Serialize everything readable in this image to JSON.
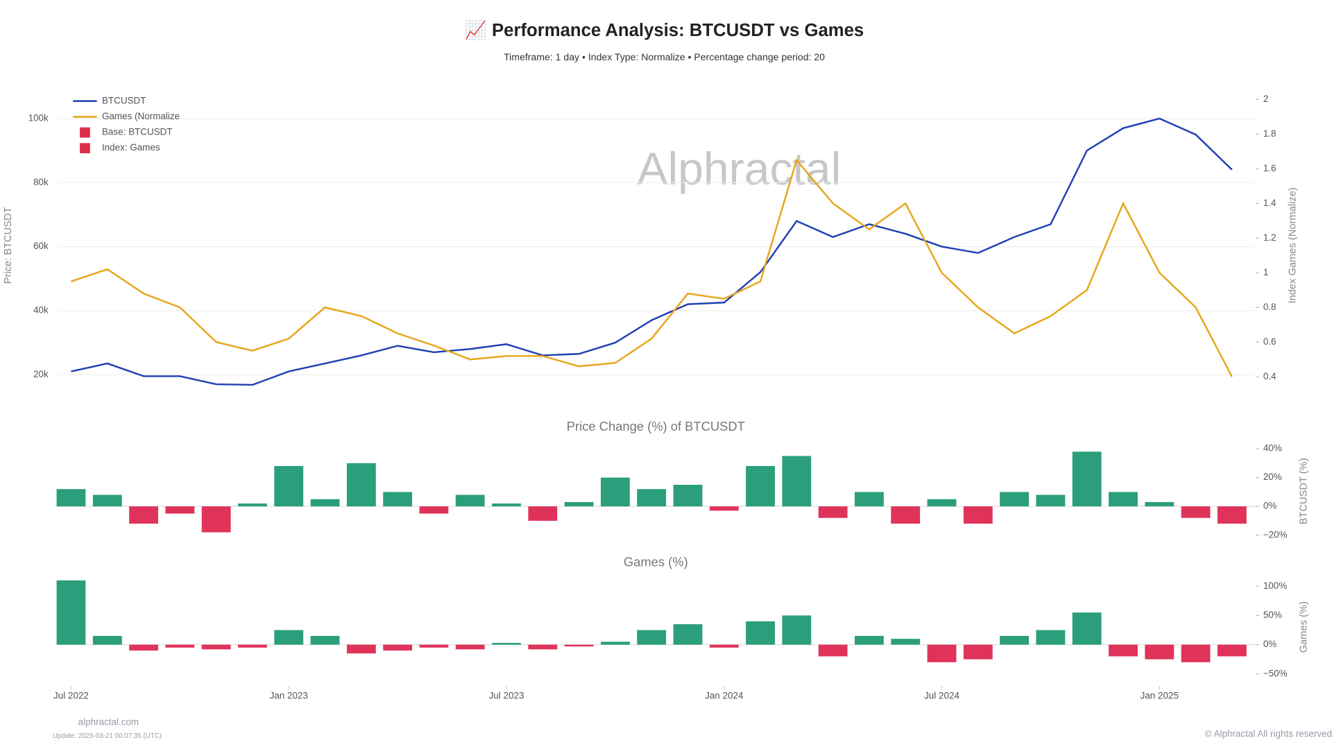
{
  "header": {
    "title": "📈 Performance Analysis: BTCUSDT vs Games",
    "subtitle": "Timeframe: 1 day  •  Index Type: Normalize  •  Percentage change period: 20"
  },
  "watermark": "Alphractal",
  "footer": {
    "site": "alphractal.com",
    "update": "Update: 2025-03-21 00:07:35 (UTC)",
    "copyright": "© Alphractal All rights reserved"
  },
  "chart_data": [
    {
      "type": "line",
      "y_label": "Price: BTCUSDT",
      "y2_label": "Index Games (Normalize)",
      "x": [
        "2022-07",
        "2022-08",
        "2022-09",
        "2022-10",
        "2022-11",
        "2022-12",
        "2023-01",
        "2023-02",
        "2023-03",
        "2023-04",
        "2023-05",
        "2023-06",
        "2023-07",
        "2023-08",
        "2023-09",
        "2023-10",
        "2023-11",
        "2023-12",
        "2024-01",
        "2024-02",
        "2024-03",
        "2024-04",
        "2024-05",
        "2024-06",
        "2024-07",
        "2024-08",
        "2024-09",
        "2024-10",
        "2024-11",
        "2024-12",
        "2025-01",
        "2025-02",
        "2025-03"
      ],
      "xlim": [
        "2022-06",
        "2025-04"
      ],
      "ylim": [
        15000,
        106000
      ],
      "yticks": [
        {
          "value": 20000,
          "label": "20k"
        },
        {
          "value": 40000,
          "label": "40k"
        },
        {
          "value": 60000,
          "label": "60k"
        },
        {
          "value": 80000,
          "label": "80k"
        },
        {
          "value": 100000,
          "label": "100k"
        }
      ],
      "y2lim": [
        0.32,
        2.0
      ],
      "y2ticks": [
        {
          "value": 0.4,
          "label": "0.4"
        },
        {
          "value": 0.6,
          "label": "0.6"
        },
        {
          "value": 0.8,
          "label": "0.8"
        },
        1,
        {
          "value": 1.2,
          "label": "1.2"
        },
        {
          "value": 1.4,
          "label": "1.4"
        },
        {
          "value": 1.6,
          "label": "1.6"
        },
        {
          "value": 1.8,
          "label": "1.8"
        },
        2
      ],
      "grid": true,
      "series": [
        {
          "name": "BTCUSDT",
          "color": "#1f3fb4",
          "values": [
            21000,
            23500,
            19500,
            19500,
            17000,
            16800,
            21000,
            23500,
            26000,
            29000,
            27000,
            28000,
            29500,
            26000,
            26500,
            30000,
            37000,
            42000,
            42500,
            52000,
            68000,
            63000,
            67000,
            64000,
            60000,
            58000,
            63000,
            67000,
            90000,
            97000,
            100000,
            95000,
            84000
          ]
        },
        {
          "name": "Games (Normalize",
          "color": "#e6a519",
          "axis": "y2",
          "values": [
            0.95,
            1.02,
            0.88,
            0.8,
            0.6,
            0.55,
            0.62,
            0.8,
            0.75,
            0.65,
            0.58,
            0.5,
            0.52,
            0.52,
            0.46,
            0.48,
            0.62,
            0.88,
            0.85,
            0.95,
            1.65,
            1.4,
            1.25,
            1.4,
            1.0,
            0.8,
            0.65,
            0.75,
            0.9,
            1.4,
            1.0,
            0.8,
            0.4
          ]
        }
      ],
      "legend_extra": [
        {
          "name": "Base: BTCUSDT",
          "color": "#dc2d4b"
        },
        {
          "name": "Index: Games",
          "color": "#dc2d4b"
        }
      ]
    },
    {
      "type": "bar",
      "title": "Price Change (%) of BTCUSDT",
      "y_label": "BTCUSDT (%)",
      "x": [
        "2022-07",
        "2022-08",
        "2022-09",
        "2022-10",
        "2022-11",
        "2022-12",
        "2023-01",
        "2023-02",
        "2023-03",
        "2023-04",
        "2023-05",
        "2023-06",
        "2023-07",
        "2023-08",
        "2023-09",
        "2023-10",
        "2023-11",
        "2023-12",
        "2024-01",
        "2024-02",
        "2024-03",
        "2024-04",
        "2024-05",
        "2024-06",
        "2024-07",
        "2024-08",
        "2024-09",
        "2024-10",
        "2024-11",
        "2024-12",
        "2025-01",
        "2025-02",
        "2025-03"
      ],
      "xlim": [
        "2022-06",
        "2025-04"
      ],
      "ylim": [
        -24,
        45
      ],
      "yticks": [
        {
          "value": -20,
          "label": "−20%"
        },
        {
          "value": 0,
          "label": "0%"
        },
        {
          "value": 20,
          "label": "20%"
        },
        {
          "value": 40,
          "label": "40%"
        }
      ],
      "positive_color": "#2b9e7c",
      "negative_color": "#e0335a",
      "values": [
        12,
        8,
        -12,
        -5,
        -18,
        2,
        28,
        5,
        30,
        10,
        -5,
        8,
        2,
        -10,
        3,
        20,
        12,
        15,
        -3,
        28,
        35,
        -8,
        10,
        -12,
        5,
        -12,
        10,
        8,
        38,
        10,
        3,
        -8,
        -12
      ]
    },
    {
      "type": "bar",
      "title": "Games (%)",
      "y_label": "Games (%)",
      "x": [
        "2022-07",
        "2022-08",
        "2022-09",
        "2022-10",
        "2022-11",
        "2022-12",
        "2023-01",
        "2023-02",
        "2023-03",
        "2023-04",
        "2023-05",
        "2023-06",
        "2023-07",
        "2023-08",
        "2023-09",
        "2023-10",
        "2023-11",
        "2023-12",
        "2024-01",
        "2024-02",
        "2024-03",
        "2024-04",
        "2024-05",
        "2024-06",
        "2024-07",
        "2024-08",
        "2024-09",
        "2024-10",
        "2024-11",
        "2024-12",
        "2025-01",
        "2025-02",
        "2025-03"
      ],
      "xlim": [
        "2022-06",
        "2025-04"
      ],
      "ylim": [
        -55,
        115
      ],
      "yticks": [
        {
          "value": -50,
          "label": "−50%"
        },
        {
          "value": 0,
          "label": "0%"
        },
        {
          "value": 50,
          "label": "50%"
        },
        {
          "value": 100,
          "label": "100%"
        }
      ],
      "xticks": [
        {
          "value": "2022-07",
          "label": "Jul 2022"
        },
        {
          "value": "2023-01",
          "label": "Jan 2023"
        },
        {
          "value": "2023-07",
          "label": "Jul 2023"
        },
        {
          "value": "2024-01",
          "label": "Jan 2024"
        },
        {
          "value": "2024-07",
          "label": "Jul 2024"
        },
        {
          "value": "2025-01",
          "label": "Jan 2025"
        }
      ],
      "positive_color": "#2b9e7c",
      "negative_color": "#e0335a",
      "values": [
        110,
        15,
        -10,
        -5,
        -8,
        -5,
        25,
        15,
        -15,
        -10,
        -5,
        -8,
        3,
        -8,
        -3,
        5,
        25,
        35,
        -5,
        40,
        50,
        -20,
        15,
        10,
        -30,
        -25,
        15,
        25,
        55,
        -20,
        -25,
        -30,
        -20
      ]
    }
  ]
}
